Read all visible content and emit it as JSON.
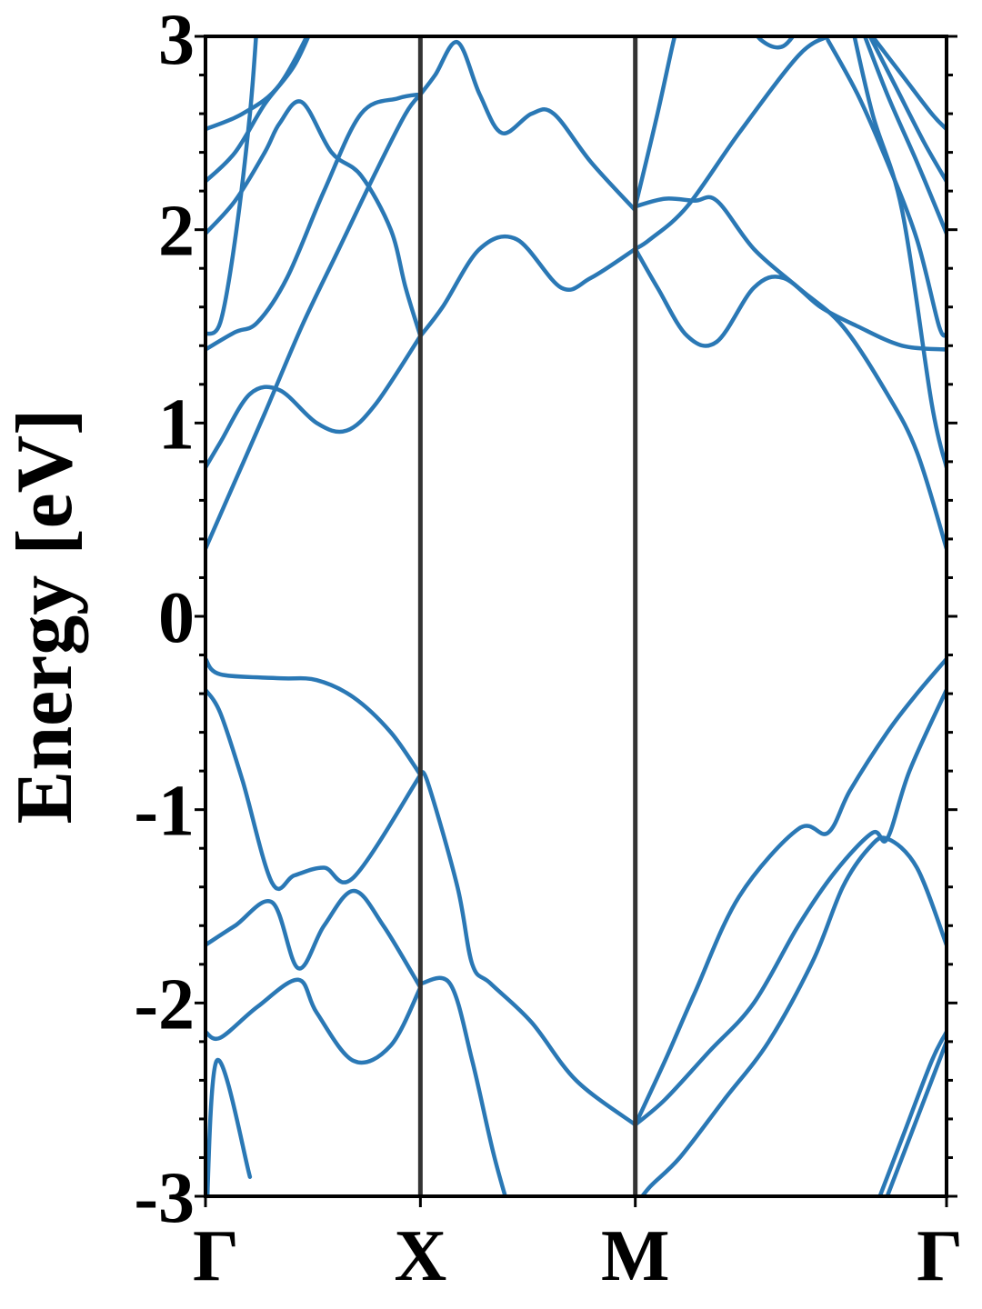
{
  "chart_data": {
    "type": "line",
    "title": "",
    "xlabel": "",
    "ylabel": "Energy [eV]",
    "ylim": [
      -3,
      3
    ],
    "y_ticks": [
      -3,
      -2,
      -1,
      0,
      1,
      2,
      3
    ],
    "y_tick_labels": [
      "-3",
      "-2",
      "-1",
      "0",
      "1",
      "2",
      "3"
    ],
    "x_range": [
      0,
      1
    ],
    "x_ticks": [
      {
        "label": "Γ",
        "x": 0.0
      },
      {
        "label": "X",
        "x": 0.29
      },
      {
        "label": "M",
        "x": 0.58
      },
      {
        "label": "Γ",
        "x": 1.0
      }
    ],
    "grid": false,
    "line_color": "#2a78b5",
    "kpoint_line_color": "#333333",
    "series": [
      {
        "values": [
          [
            0,
            -3.3
          ],
          [
            0.015,
            -2.3
          ],
          [
            0.06,
            -2.9
          ]
        ]
      },
      {
        "values": [
          [
            0,
            -2.15
          ],
          [
            0.02,
            -2.18
          ],
          [
            0.07,
            -2.02
          ],
          [
            0.125,
            -1.88
          ],
          [
            0.15,
            -2.05
          ],
          [
            0.2,
            -2.3
          ],
          [
            0.25,
            -2.22
          ],
          [
            0.29,
            -1.92
          ]
        ]
      },
      {
        "values": [
          [
            0,
            -1.7
          ],
          [
            0.04,
            -1.6
          ],
          [
            0.09,
            -1.48
          ],
          [
            0.125,
            -1.82
          ],
          [
            0.16,
            -1.6
          ],
          [
            0.2,
            -1.42
          ],
          [
            0.24,
            -1.6
          ],
          [
            0.29,
            -1.92
          ]
        ]
      },
      {
        "values": [
          [
            0,
            -0.38
          ],
          [
            0.02,
            -0.5
          ],
          [
            0.05,
            -0.85
          ],
          [
            0.09,
            -1.38
          ],
          [
            0.12,
            -1.34
          ],
          [
            0.16,
            -1.3
          ],
          [
            0.2,
            -1.35
          ],
          [
            0.29,
            -0.82
          ]
        ]
      },
      {
        "values": [
          [
            0,
            -0.22
          ],
          [
            0.02,
            -0.3
          ],
          [
            0.1,
            -0.32
          ],
          [
            0.15,
            -0.33
          ],
          [
            0.2,
            -0.42
          ],
          [
            0.25,
            -0.6
          ],
          [
            0.29,
            -0.82
          ]
        ]
      },
      {
        "values": [
          [
            0.29,
            -0.82
          ],
          [
            0.3,
            -0.86
          ],
          [
            0.34,
            -1.4
          ],
          [
            0.36,
            -1.8
          ],
          [
            0.385,
            -1.9
          ],
          [
            0.44,
            -2.1
          ],
          [
            0.5,
            -2.4
          ],
          [
            0.58,
            -2.63
          ]
        ]
      },
      {
        "values": [
          [
            0.29,
            -1.9
          ],
          [
            0.33,
            -1.9
          ],
          [
            0.36,
            -2.3
          ],
          [
            0.39,
            -2.8
          ],
          [
            0.42,
            -3.2
          ]
        ]
      },
      {
        "values": [
          [
            0.58,
            -3.05
          ],
          [
            0.6,
            -2.95
          ],
          [
            0.64,
            -2.8
          ],
          [
            0.7,
            -2.5
          ],
          [
            0.76,
            -2.2
          ],
          [
            0.82,
            -1.78
          ],
          [
            0.86,
            -1.4
          ],
          [
            0.895,
            -1.2
          ],
          [
            0.92,
            -1.15
          ],
          [
            0.96,
            -1.3
          ],
          [
            1.0,
            -1.7
          ]
        ]
      },
      {
        "values": [
          [
            0.58,
            -2.63
          ],
          [
            0.62,
            -2.5
          ],
          [
            0.68,
            -2.25
          ],
          [
            0.74,
            -2.0
          ],
          [
            0.8,
            -1.6
          ],
          [
            0.85,
            -1.32
          ],
          [
            0.9,
            -1.12
          ],
          [
            0.92,
            -1.15
          ],
          [
            0.95,
            -0.8
          ],
          [
            1.0,
            -0.38
          ]
        ]
      },
      {
        "values": [
          [
            0.58,
            -2.63
          ],
          [
            0.62,
            -2.3
          ],
          [
            0.66,
            -1.95
          ],
          [
            0.72,
            -1.45
          ],
          [
            0.8,
            -1.1
          ],
          [
            0.84,
            -1.12
          ],
          [
            0.87,
            -0.9
          ],
          [
            0.92,
            -0.6
          ],
          [
            0.96,
            -0.4
          ],
          [
            1.0,
            -0.22
          ]
        ]
      },
      {
        "values": [
          [
            0.9,
            -3.2
          ],
          [
            0.94,
            -2.8
          ],
          [
            0.98,
            -2.4
          ],
          [
            1.0,
            -2.2
          ]
        ]
      },
      {
        "values": [
          [
            0.9,
            -3.1
          ],
          [
            0.94,
            -2.7
          ],
          [
            0.98,
            -2.3
          ],
          [
            1.0,
            -2.15
          ]
        ]
      },
      {
        "values": [
          [
            0,
            0.35
          ],
          [
            0.04,
            0.7
          ],
          [
            0.08,
            1.05
          ],
          [
            0.13,
            1.5
          ],
          [
            0.18,
            1.9
          ],
          [
            0.23,
            2.3
          ],
          [
            0.27,
            2.6
          ],
          [
            0.29,
            2.7
          ]
        ]
      },
      {
        "values": [
          [
            0,
            0.77
          ],
          [
            0.02,
            0.9
          ],
          [
            0.06,
            1.15
          ],
          [
            0.1,
            1.17
          ],
          [
            0.15,
            1.0
          ],
          [
            0.19,
            0.96
          ],
          [
            0.23,
            1.1
          ],
          [
            0.29,
            1.45
          ]
        ]
      },
      {
        "values": [
          [
            0,
            1.38
          ],
          [
            0.04,
            1.47
          ],
          [
            0.07,
            1.52
          ],
          [
            0.11,
            1.75
          ],
          [
            0.16,
            2.2
          ],
          [
            0.21,
            2.6
          ],
          [
            0.26,
            2.68
          ],
          [
            0.29,
            2.7
          ]
        ]
      },
      {
        "values": [
          [
            0,
            1.46
          ],
          [
            0.02,
            1.52
          ],
          [
            0.04,
            1.95
          ],
          [
            0.06,
            2.6
          ],
          [
            0.07,
            3.1
          ]
        ]
      },
      {
        "values": [
          [
            0,
            1.98
          ],
          [
            0.04,
            2.15
          ],
          [
            0.08,
            2.4
          ],
          [
            0.1,
            2.55
          ],
          [
            0.13,
            2.66
          ],
          [
            0.17,
            2.4
          ],
          [
            0.21,
            2.28
          ],
          [
            0.25,
            2.0
          ],
          [
            0.27,
            1.7
          ],
          [
            0.29,
            1.45
          ]
        ]
      },
      {
        "values": [
          [
            0,
            2.25
          ],
          [
            0.04,
            2.4
          ],
          [
            0.08,
            2.65
          ],
          [
            0.12,
            2.85
          ],
          [
            0.15,
            3.1
          ]
        ]
      },
      {
        "values": [
          [
            0,
            2.52
          ],
          [
            0.05,
            2.6
          ],
          [
            0.1,
            2.75
          ],
          [
            0.15,
            3.1
          ]
        ]
      },
      {
        "values": [
          [
            0.29,
            1.45
          ],
          [
            0.32,
            1.6
          ],
          [
            0.37,
            1.9
          ],
          [
            0.42,
            1.95
          ],
          [
            0.48,
            1.7
          ],
          [
            0.52,
            1.75
          ],
          [
            0.58,
            1.9
          ]
        ]
      },
      {
        "values": [
          [
            0.29,
            2.7
          ],
          [
            0.31,
            2.8
          ],
          [
            0.34,
            2.97
          ],
          [
            0.37,
            2.7
          ],
          [
            0.4,
            2.5
          ],
          [
            0.44,
            2.6
          ],
          [
            0.47,
            2.6
          ],
          [
            0.52,
            2.35
          ],
          [
            0.58,
            2.1
          ]
        ]
      },
      {
        "values": [
          [
            0.58,
            1.9
          ],
          [
            0.61,
            1.7
          ],
          [
            0.65,
            1.45
          ],
          [
            0.69,
            1.42
          ],
          [
            0.74,
            1.7
          ],
          [
            0.78,
            1.75
          ],
          [
            0.83,
            1.6
          ],
          [
            0.88,
            1.5
          ],
          [
            0.94,
            1.4
          ],
          [
            1.0,
            1.38
          ]
        ]
      },
      {
        "values": [
          [
            0.58,
            2.12
          ],
          [
            0.62,
            2.16
          ],
          [
            0.66,
            2.15
          ],
          [
            0.69,
            2.15
          ],
          [
            0.74,
            1.9
          ],
          [
            0.8,
            1.7
          ],
          [
            0.86,
            1.5
          ],
          [
            0.92,
            1.15
          ],
          [
            0.96,
            0.85
          ],
          [
            1.0,
            0.35
          ]
        ]
      },
      {
        "values": [
          [
            0.58,
            1.9
          ],
          [
            0.6,
            1.95
          ],
          [
            0.65,
            2.12
          ],
          [
            0.72,
            2.5
          ],
          [
            0.8,
            2.9
          ],
          [
            0.84,
            3.0
          ]
        ]
      },
      {
        "values": [
          [
            0.58,
            2.12
          ],
          [
            0.61,
            2.6
          ],
          [
            0.63,
            2.95
          ],
          [
            0.64,
            3.1
          ]
        ]
      },
      {
        "values": [
          [
            0.84,
            2.98
          ],
          [
            0.88,
            2.7
          ],
          [
            0.92,
            2.35
          ],
          [
            0.96,
            1.95
          ],
          [
            0.99,
            1.5
          ],
          [
            1.0,
            1.46
          ]
        ]
      },
      {
        "values": [
          [
            0.87,
            3.1
          ],
          [
            0.9,
            2.6
          ],
          [
            0.94,
            2.1
          ],
          [
            0.98,
            1.1
          ],
          [
            1.0,
            0.77
          ]
        ]
      },
      {
        "values": [
          [
            0.88,
            3.1
          ],
          [
            0.92,
            2.7
          ],
          [
            0.96,
            2.35
          ],
          [
            1.0,
            1.98
          ]
        ]
      },
      {
        "values": [
          [
            0.89,
            3.05
          ],
          [
            0.93,
            2.75
          ],
          [
            0.97,
            2.45
          ],
          [
            1.0,
            2.25
          ]
        ]
      },
      {
        "values": [
          [
            0.9,
            3.0
          ],
          [
            0.94,
            2.8
          ],
          [
            0.98,
            2.6
          ],
          [
            1.0,
            2.52
          ]
        ]
      },
      {
        "values": [
          [
            0.73,
            3.1
          ],
          [
            0.75,
            2.98
          ],
          [
            0.78,
            2.95
          ],
          [
            0.81,
            3.1
          ]
        ]
      }
    ]
  }
}
